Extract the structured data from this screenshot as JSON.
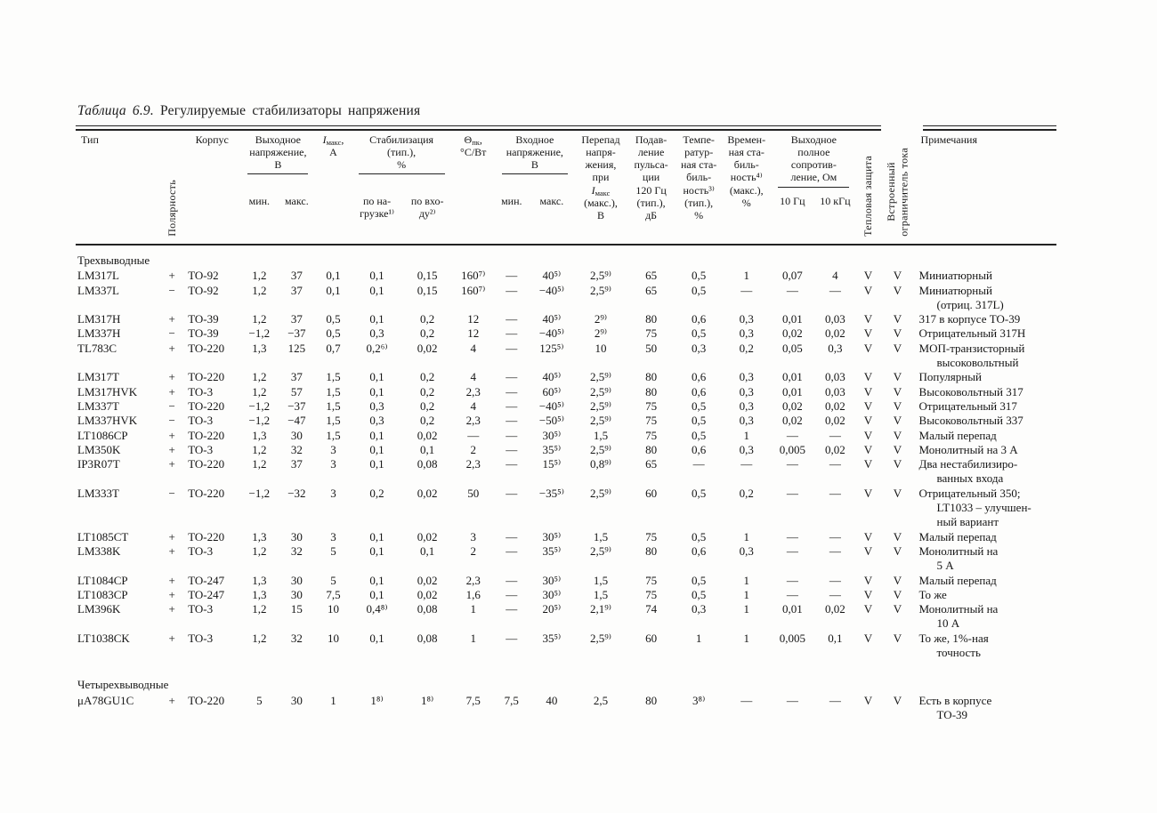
{
  "title": {
    "number": "Таблица 6.9.",
    "text": "Регулируемые стабилизаторы напряжения"
  },
  "header": {
    "type": "Тип",
    "polarity": "Полярность",
    "package": "Корпус",
    "vout": {
      "label": "Выходное\nнапряжение,\nВ",
      "min": "мин.",
      "max": "макс."
    },
    "imax": {
      "i": "I",
      "sub": "макс",
      "rest": ",",
      "unit": "А"
    },
    "stab": {
      "label": "Стабилизация\n(тип.),\n%",
      "load": "по на-\nгрузке¹⁾",
      "line": "по вхо-\nду²⁾"
    },
    "theta": {
      "sym": "Θ",
      "sub": "пк",
      "rest": ",",
      "unit": "°С/Вт"
    },
    "vin": {
      "label": "Входное\nнапряжение,\nВ",
      "min": "мин.",
      "max": "макс."
    },
    "dropout": {
      "top": "Перепад\nнапря-\nжения,\nпри",
      "i": "I",
      "sub": "макс",
      "bottom": "(макс.),\nВ"
    },
    "ripple": "Подав-\nление\nпульса-\nции\n120 Гц\n(тип.),\nдБ",
    "temp_stab": "Темпе-\nратур-\nная ста-\nбиль-\nность³⁾\n(тип.),\n%",
    "time_stab": "Времен-\nная ста-\nбиль-\nность⁴⁾\n(макс.),\n%",
    "zout": {
      "label": "Выходное\nполное\nсопротив-\nление, Ом",
      "f1": "10 Гц",
      "f2": "10 кГц"
    },
    "thermal": "Тепловая защита",
    "limiter": "Встроенный\nограничитель тока",
    "notes": "Примечания"
  },
  "groups": [
    {
      "label": "Трехвыводные",
      "gap": false,
      "rows": [
        {
          "cells": [
            "LM317L",
            "+",
            "TO-92",
            "1,2",
            "37",
            "0,1",
            "0,1",
            "0,15",
            "160⁷⁾",
            "—",
            "40⁵⁾",
            "2,5⁹⁾",
            "65",
            "0,5",
            "1",
            "0,07",
            "4",
            "V",
            "V",
            "Миниатюрный"
          ]
        },
        {
          "cells": [
            "LM337L",
            "−",
            "TO-92",
            "1,2",
            "37",
            "0,1",
            "0,1",
            "0,15",
            "160⁷⁾",
            "—",
            "−40⁵⁾",
            "2,5⁹⁾",
            "65",
            "0,5",
            "—",
            "—",
            "—",
            "V",
            "V",
            "Миниатюрный\n(отриц. 317L)"
          ]
        },
        {
          "cells": [
            "LM317H",
            "+",
            "TO-39",
            "1,2",
            "37",
            "0,5",
            "0,1",
            "0,2",
            "12",
            "—",
            "40⁵⁾",
            "2⁹⁾",
            "80",
            "0,6",
            "0,3",
            "0,01",
            "0,03",
            "V",
            "V",
            "317 в корпусе ТО-39"
          ]
        },
        {
          "cells": [
            "LM337H",
            "−",
            "TO-39",
            "−1,2",
            "−37",
            "0,5",
            "0,3",
            "0,2",
            "12",
            "—",
            "−40⁵⁾",
            "2⁹⁾",
            "75",
            "0,5",
            "0,3",
            "0,02",
            "0,02",
            "V",
            "V",
            "Отрицательный 317Н"
          ]
        },
        {
          "cells": [
            "TL783C",
            "+",
            "TO-220",
            "1,3",
            "125",
            "0,7",
            "0,2⁶⁾",
            "0,02",
            "4",
            "—",
            "125⁵⁾",
            "10",
            "50",
            "0,3",
            "0,2",
            "0,05",
            "0,3",
            "V",
            "V",
            "МОП-транзисторный\nвысоковольтный"
          ]
        },
        {
          "cells": [
            "LM317T",
            "+",
            "TO-220",
            "1,2",
            "37",
            "1,5",
            "0,1",
            "0,2",
            "4",
            "—",
            "40⁵⁾",
            "2,5⁹⁾",
            "80",
            "0,6",
            "0,3",
            "0,01",
            "0,03",
            "V",
            "V",
            "Популярный"
          ]
        },
        {
          "cells": [
            "LM317HVK",
            "+",
            "TO-3",
            "1,2",
            "57",
            "1,5",
            "0,1",
            "0,2",
            "2,3",
            "—",
            "60⁵⁾",
            "2,5⁹⁾",
            "80",
            "0,6",
            "0,3",
            "0,01",
            "0,03",
            "V",
            "V",
            "Высоковольтный 317"
          ]
        },
        {
          "cells": [
            "LM337T",
            "−",
            "TO-220",
            "−1,2",
            "−37",
            "1,5",
            "0,3",
            "0,2",
            "4",
            "—",
            "−40⁵⁾",
            "2,5⁹⁾",
            "75",
            "0,5",
            "0,3",
            "0,02",
            "0,02",
            "V",
            "V",
            "Отрицательный 317"
          ]
        },
        {
          "cells": [
            "LM337HVK",
            "−",
            "TO-3",
            "−1,2",
            "−47",
            "1,5",
            "0,3",
            "0,2",
            "2,3",
            "—",
            "−50⁵⁾",
            "2,5⁹⁾",
            "75",
            "0,5",
            "0,3",
            "0,02",
            "0,02",
            "V",
            "V",
            "Высоковольтный 337"
          ]
        },
        {
          "cells": [
            "LT1086CP",
            "+",
            "TO-220",
            "1,3",
            "30",
            "1,5",
            "0,1",
            "0,02",
            "—",
            "—",
            "30⁵⁾",
            "1,5",
            "75",
            "0,5",
            "1",
            "—",
            "—",
            "V",
            "V",
            "Малый перепад"
          ]
        },
        {
          "cells": [
            "LM350K",
            "+",
            "TO-3",
            "1,2",
            "32",
            "3",
            "0,1",
            "0,1",
            "2",
            "—",
            "35⁵⁾",
            "2,5⁹⁾",
            "80",
            "0,6",
            "0,3",
            "0,005",
            "0,02",
            "V",
            "V",
            "Монолитный на 3 А"
          ]
        },
        {
          "cells": [
            "IP3R07T",
            "+",
            "TO-220",
            "1,2",
            "37",
            "3",
            "0,1",
            "0,08",
            "2,3",
            "—",
            "15⁵⁾",
            "0,8⁹⁾",
            "65",
            "—",
            "—",
            "—",
            "—",
            "V",
            "V",
            "Два нестабилизиро-\nванных входа"
          ]
        },
        {
          "cells": [
            "LM333T",
            "−",
            "TO-220",
            "−1,2",
            "−32",
            "3",
            "0,2",
            "0,02",
            "50",
            "—",
            "−35⁵⁾",
            "2,5⁹⁾",
            "60",
            "0,5",
            "0,2",
            "—",
            "—",
            "V",
            "V",
            "Отрицательный 350;\nLT1033 – улучшен-\nный вариант"
          ]
        },
        {
          "cells": [
            "LT1085CT",
            "+",
            "TO-220",
            "1,3",
            "30",
            "3",
            "0,1",
            "0,02",
            "3",
            "—",
            "30⁵⁾",
            "1,5",
            "75",
            "0,5",
            "1",
            "—",
            "—",
            "V",
            "V",
            "Малый перепад"
          ]
        },
        {
          "cells": [
            "LM338K",
            "+",
            "TO-3",
            "1,2",
            "32",
            "5",
            "0,1",
            "0,1",
            "2",
            "—",
            "35⁵⁾",
            "2,5⁹⁾",
            "80",
            "0,6",
            "0,3",
            "—",
            "—",
            "V",
            "V",
            "Монолитный на\n5 А"
          ]
        },
        {
          "cells": [
            "LT1084CP",
            "+",
            "TO-247",
            "1,3",
            "30",
            "5",
            "0,1",
            "0,02",
            "2,3",
            "—",
            "30⁵⁾",
            "1,5",
            "75",
            "0,5",
            "1",
            "—",
            "—",
            "V",
            "V",
            "Малый перепад"
          ]
        },
        {
          "cells": [
            "LT1083CP",
            "+",
            "TO-247",
            "1,3",
            "30",
            "7,5",
            "0,1",
            "0,02",
            "1,6",
            "—",
            "30⁵⁾",
            "1,5",
            "75",
            "0,5",
            "1",
            "—",
            "—",
            "V",
            "V",
            "То же"
          ]
        },
        {
          "cells": [
            "LM396K",
            "+",
            "TO-3",
            "1,2",
            "15",
            "10",
            "0,4⁸⁾",
            "0,08",
            "1",
            "—",
            "20⁵⁾",
            "2,1⁹⁾",
            "74",
            "0,3",
            "1",
            "0,01",
            "0,02",
            "V",
            "V",
            "Монолитный на\n10 А"
          ]
        },
        {
          "cells": [
            "LT1038CK",
            "+",
            "TO-3",
            "1,2",
            "32",
            "10",
            "0,1",
            "0,08",
            "1",
            "—",
            "35⁵⁾",
            "2,5⁹⁾",
            "60",
            "1",
            "1",
            "0,005",
            "0,1",
            "V",
            "V",
            "То же, 1%-ная\nточность"
          ]
        }
      ]
    },
    {
      "label": "Четырехвыводные",
      "gap": true,
      "rows": [
        {
          "cells": [
            "μA78GU1C",
            "+",
            "TO-220",
            "5",
            "30",
            "1",
            "1⁸⁾",
            "1⁸⁾",
            "7,5",
            "7,5",
            "40",
            "2,5",
            "80",
            "3⁸⁾",
            "—",
            "—",
            "—",
            "V",
            "V",
            "Есть в корпусе\nТО-39"
          ]
        }
      ]
    }
  ]
}
